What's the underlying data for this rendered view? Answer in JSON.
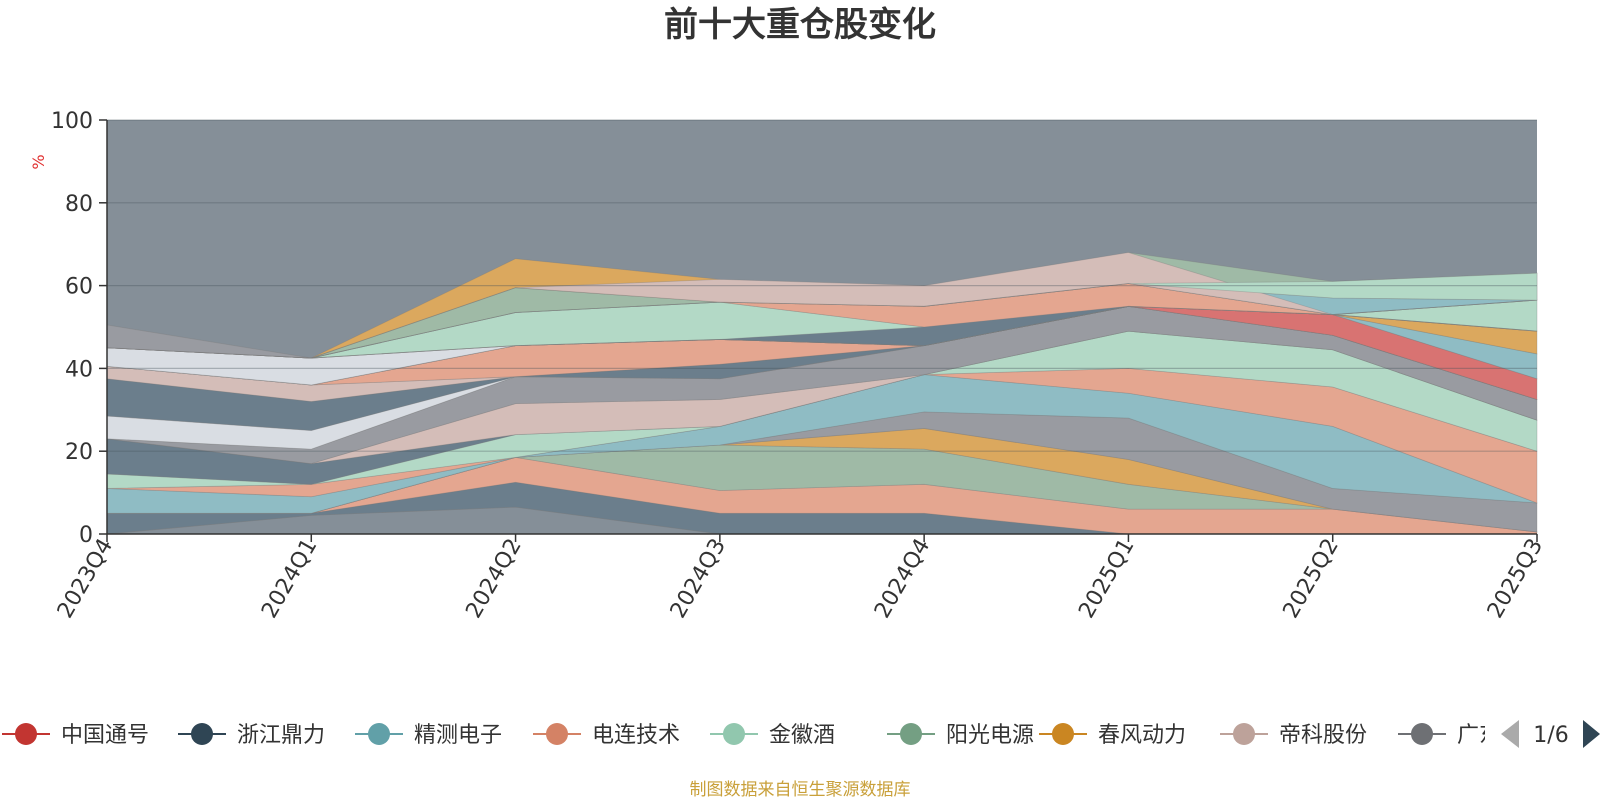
{
  "chart_data": {
    "type": "area",
    "title": "前十大重仓股变化",
    "ylabel": "%",
    "ylim": [
      0,
      100
    ],
    "yticks": [
      0,
      20,
      40,
      60,
      80,
      100
    ],
    "categories": [
      "2023Q4",
      "2024Q1",
      "2024Q2",
      "2024Q3",
      "2024Q4",
      "2025Q1",
      "2025Q2",
      "2025Q3"
    ],
    "grid": true,
    "legend_position": "bottom",
    "legend_page": "1/6",
    "source": "制图数据来自恒生聚源数据库",
    "series": [
      {
        "name": "中国通号",
        "color": "#d87372",
        "legend_color": "#c23531"
      },
      {
        "name": "浙江鼎力",
        "color": "#6b7e8c",
        "legend_color": "#2f4554"
      },
      {
        "name": "精测电子",
        "color": "#8fbcc4",
        "legend_color": "#61a0a8"
      },
      {
        "name": "电连技术",
        "color": "#e4a690",
        "legend_color": "#d48265"
      },
      {
        "name": "金徽酒",
        "color": "#b3d9c6",
        "legend_color": "#91c7ae"
      },
      {
        "name": "阳光电源",
        "color": "#9fbaa6",
        "legend_color": "#749f83"
      },
      {
        "name": "春风动力",
        "color": "#dba85e",
        "legend_color": "#ca8622"
      },
      {
        "name": "帝科股份",
        "color": "#d4bdb8",
        "legend_color": "#bda29a"
      },
      {
        "name": "广东宏大",
        "color": "#999ba1",
        "legend_color": "#6e7074"
      }
    ],
    "bands": [
      {
        "color": "#d87372",
        "lower": [
          0,
          4.5,
          6.5,
          0,
          0,
          0,
          0,
          0
        ],
        "upper": [
          0,
          4.5,
          6.5,
          0,
          0,
          0,
          0,
          0
        ]
      },
      {
        "color": "#6b7e8c",
        "lower": [
          0,
          4.5,
          6.5,
          0,
          0,
          0,
          0,
          0
        ],
        "upper": [
          5,
          5,
          12.5,
          5,
          5,
          0,
          0,
          0
        ]
      },
      {
        "color": "#e4a690",
        "lower": [
          5,
          5,
          12.5,
          5,
          5,
          0,
          0,
          0
        ],
        "upper": [
          5,
          5,
          18.5,
          10.5,
          12,
          6,
          6,
          0.5
        ]
      },
      {
        "color": "#9fbaa6",
        "lower": [
          5,
          5,
          18.5,
          10.5,
          12,
          6,
          6,
          0.5
        ],
        "upper": [
          5,
          5,
          18.5,
          21.5,
          20.5,
          12,
          6,
          0.5
        ]
      },
      {
        "color": "#dba85e",
        "lower": [
          5,
          5,
          18.5,
          21.5,
          20.5,
          12,
          6,
          0.5
        ],
        "upper": [
          5,
          5,
          18.5,
          21.5,
          25.5,
          18,
          6,
          0.5
        ]
      },
      {
        "color": "#999ba1",
        "lower": [
          5,
          5,
          18.5,
          21.5,
          25.5,
          18,
          6,
          0.5
        ],
        "upper": [
          5,
          5,
          18.5,
          21.5,
          29.5,
          28,
          11,
          7.5
        ]
      },
      {
        "color": "#8fbcc4",
        "lower": [
          5,
          5,
          18.5,
          21.5,
          29.5,
          28,
          11,
          7.5
        ],
        "upper": [
          11,
          9,
          18.5,
          26,
          38.5,
          34,
          26,
          7.5
        ]
      },
      {
        "color": "#e4a690",
        "lower": [
          11,
          9,
          18.5,
          26,
          38.5,
          34,
          26,
          7.5
        ],
        "upper": [
          11,
          12,
          18.5,
          26,
          38.5,
          40,
          35.5,
          20
        ]
      },
      {
        "color": "#b3d9c6",
        "lower": [
          11,
          12,
          18.5,
          26,
          38.5,
          40,
          35.5,
          20
        ],
        "upper": [
          14.5,
          12,
          24,
          26,
          38.5,
          49,
          44.5,
          27.5
        ]
      },
      {
        "color": "#6b7e8c",
        "lower": [
          14.5,
          12,
          24,
          26,
          38.5,
          49,
          44.5,
          27.5
        ],
        "upper": [
          23,
          17,
          24,
          26,
          38.5,
          49,
          44.5,
          27.5
        ]
      },
      {
        "color": "#d4bdb8",
        "lower": [
          23,
          17,
          24,
          26,
          38.5,
          49,
          44.5,
          27.5
        ],
        "upper": [
          23,
          17,
          31.5,
          32.5,
          38.5,
          49,
          44.5,
          27.5
        ]
      },
      {
        "color": "#999ba1",
        "lower": [
          23,
          17,
          31.5,
          32.5,
          38.5,
          49,
          44.5,
          27.5
        ],
        "upper": [
          23,
          20.5,
          38,
          37.5,
          45.5,
          55,
          48,
          32.5
        ]
      },
      {
        "color": "#d9dde3",
        "lower": [
          23,
          20.5,
          38,
          37.5,
          45.5,
          55,
          48,
          32.5
        ],
        "upper": [
          28.5,
          25,
          38,
          37.5,
          45.5,
          55,
          48,
          32.5
        ]
      },
      {
        "color": "#6b7e8c",
        "lower": [
          28.5,
          25,
          38,
          37.5,
          45.5,
          55,
          48,
          32.5
        ],
        "upper": [
          37.5,
          32,
          38,
          41,
          45.5,
          55,
          48,
          32.5
        ]
      },
      {
        "color": "#d4bdb8",
        "lower": [
          37.5,
          32,
          38,
          41,
          45.5,
          55,
          48,
          32.5
        ],
        "upper": [
          40.5,
          36,
          38,
          41,
          45.5,
          55,
          48,
          32.5
        ]
      },
      {
        "color": "#e4a690",
        "lower": [
          40.5,
          36,
          38,
          41,
          45.5,
          55,
          48,
          32.5
        ],
        "upper": [
          40.5,
          36,
          45.5,
          47,
          45.5,
          55,
          48,
          32.5
        ]
      },
      {
        "color": "#d87372",
        "lower": [
          40.5,
          36,
          45.5,
          47,
          45.5,
          55,
          48,
          32.5
        ],
        "upper": [
          40.5,
          36,
          45.5,
          47,
          45.5,
          55,
          53,
          37.5
        ]
      },
      {
        "color": "#8fbcc4",
        "lower": [
          40.5,
          36,
          45.5,
          47,
          45.5,
          55,
          53,
          37.5
        ],
        "upper": [
          40.5,
          36,
          45.5,
          47,
          45.5,
          55,
          53,
          43.5
        ]
      },
      {
        "color": "#dba85e",
        "lower": [
          40.5,
          36,
          45.5,
          47,
          45.5,
          55,
          53,
          43.5
        ],
        "upper": [
          40.5,
          36,
          45.5,
          47,
          45.5,
          55,
          53,
          49
        ]
      },
      {
        "color": "#d9dde3",
        "lower": [
          40.5,
          36,
          45.5,
          47,
          45.5,
          55,
          53,
          49
        ],
        "upper": [
          45,
          42.5,
          45.5,
          47,
          45.5,
          55,
          53,
          49
        ]
      },
      {
        "color": "#d87372",
        "lower": [
          45,
          42.5,
          45.5,
          47,
          45.5,
          55,
          53,
          49
        ],
        "upper": [
          48,
          42.5,
          45.5,
          47,
          45.5,
          55,
          53,
          49
        ]
      },
      {
        "color": "#b3d9c6",
        "lower": [
          45,
          42.5,
          45.5,
          47,
          45.5,
          55,
          53,
          49
        ],
        "upper": [
          45,
          42.5,
          53.5,
          56,
          50,
          55,
          53,
          56.5
        ]
      },
      {
        "color": "#6b7e8c",
        "lower": [
          45,
          42.5,
          45.5,
          47,
          45.5,
          55,
          53,
          49
        ],
        "upper": [
          45,
          42.5,
          45.5,
          47,
          50,
          60.5,
          53,
          49
        ]
      },
      {
        "color": "#e4a690",
        "lower": [
          45,
          42.5,
          53.5,
          56,
          50,
          55,
          53,
          56.5
        ],
        "upper": [
          45,
          42.5,
          53.5,
          56,
          55,
          60.5,
          53,
          56.5
        ]
      },
      {
        "color": "#9fbaa6",
        "lower": [
          45,
          42.5,
          53.5,
          56,
          55,
          60.5,
          53,
          56.5
        ],
        "upper": [
          45,
          42.5,
          59.5,
          56,
          55,
          68,
          61,
          63
        ]
      },
      {
        "color": "#8fbcc4",
        "lower": [
          45,
          42.5,
          53.5,
          56,
          55,
          60.5,
          53,
          56.5
        ],
        "upper": [
          45,
          42.5,
          53.5,
          56,
          55,
          60.5,
          57,
          56.5
        ]
      },
      {
        "color": "#dba85e",
        "lower": [
          45,
          42.5,
          59.5,
          56,
          55,
          60.5,
          53,
          56.5
        ],
        "upper": [
          45,
          42.5,
          66.5,
          61.5,
          55,
          60.5,
          53,
          56.5
        ]
      },
      {
        "color": "#d4bdb8",
        "lower": [
          45,
          42.5,
          59.5,
          56,
          55,
          60.5,
          53,
          56.5
        ],
        "upper": [
          45,
          42.5,
          59.5,
          61.5,
          60,
          68,
          53,
          56.5
        ]
      },
      {
        "color": "#999ba1",
        "lower": [
          45,
          42.5,
          45.5,
          47,
          45.5,
          55,
          53,
          49
        ],
        "upper": [
          50.5,
          42.5,
          45.5,
          47,
          45.5,
          55,
          53,
          49
        ]
      },
      {
        "color": "#b3d9c6",
        "lower": [
          45,
          42.5,
          53.5,
          56,
          55,
          60.5,
          57,
          56.5
        ],
        "upper": [
          45,
          42.5,
          53.5,
          56,
          55,
          60.5,
          61,
          63
        ]
      }
    ]
  }
}
